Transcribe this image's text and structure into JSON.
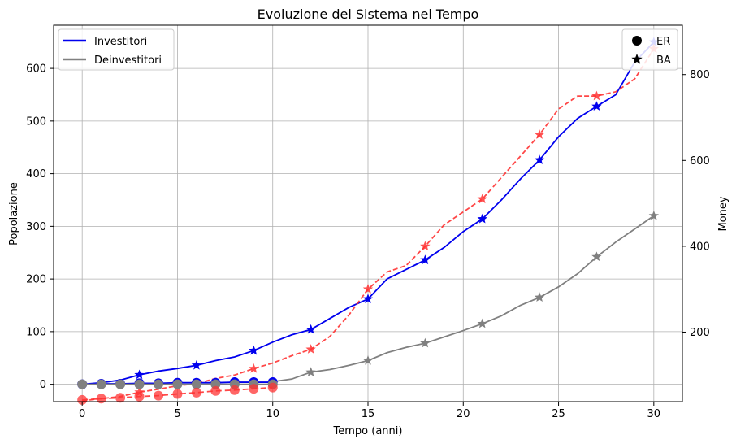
{
  "chart_data": {
    "type": "line",
    "title": "Evoluzione del Sistema nel Tempo",
    "xlabel": "Tempo (anni)",
    "ylabel": "Popolazione",
    "y2label": "Money",
    "xlim": [
      -1.5,
      31.5
    ],
    "ylim": [
      -33,
      682
    ],
    "y2lim": [
      38,
      915
    ],
    "x_ticks": [
      0,
      5,
      10,
      15,
      20,
      25,
      30
    ],
    "y_ticks": [
      0,
      100,
      200,
      300,
      400,
      500,
      600
    ],
    "y2_ticks": [
      200,
      400,
      600,
      800
    ],
    "grid": true,
    "legend_left": {
      "placement": "top-left",
      "entries": [
        {
          "label": "Investitori",
          "color": "#0000ee"
        },
        {
          "label": "Deinvestitori",
          "color": "#808080"
        }
      ]
    },
    "legend_right": {
      "placement": "top-right",
      "entries": [
        {
          "label": "ER",
          "marker": "circle"
        },
        {
          "label": "BA",
          "marker": "star"
        }
      ]
    },
    "series": [
      {
        "model": "BA",
        "kind": "investitori",
        "axis": "left",
        "color": "#0000ee",
        "style": "solid",
        "x": [
          0,
          1,
          2,
          3,
          4,
          5,
          6,
          7,
          8,
          9,
          10,
          11,
          12,
          13,
          14,
          15,
          16,
          17,
          18,
          19,
          20,
          21,
          22,
          23,
          24,
          25,
          26,
          27,
          28,
          29,
          30
        ],
        "y": [
          0,
          3,
          8,
          18,
          25,
          30,
          36,
          45,
          52,
          64,
          80,
          94,
          104,
          125,
          146,
          162,
          200,
          218,
          236,
          260,
          290,
          314,
          350,
          390,
          426,
          470,
          505,
          528,
          550,
          612,
          650
        ],
        "marker_x": [
          0,
          3,
          6,
          9,
          12,
          15,
          18,
          21,
          24,
          27,
          30
        ],
        "marker_y": [
          0,
          18,
          36,
          64,
          104,
          162,
          236,
          314,
          426,
          528,
          650
        ]
      },
      {
        "model": "BA",
        "kind": "deinvestitori",
        "axis": "left",
        "color": "#808080",
        "style": "solid",
        "x": [
          10,
          11,
          12,
          13,
          14,
          15,
          16,
          17,
          18,
          19,
          20,
          21,
          22,
          23,
          24,
          25,
          26,
          27,
          28,
          29,
          30
        ],
        "y": [
          5,
          10,
          23,
          28,
          36,
          45,
          60,
          70,
          78,
          90,
          102,
          115,
          130,
          150,
          165,
          185,
          210,
          242,
          270,
          295,
          320
        ],
        "marker_x": [
          12,
          15,
          18,
          21,
          24,
          27,
          30
        ],
        "marker_y": [
          23,
          45,
          78,
          115,
          165,
          242,
          320
        ]
      },
      {
        "model": "BA",
        "kind": "money",
        "axis": "right",
        "color": "#ff3333",
        "style": "dashed",
        "x": [
          0,
          1,
          2,
          3,
          4,
          5,
          6,
          7,
          8,
          9,
          10,
          11,
          12,
          13,
          14,
          15,
          16,
          17,
          18,
          19,
          20,
          21,
          22,
          23,
          24,
          25,
          26,
          27,
          28,
          29,
          30
        ],
        "y": [
          40,
          45,
          50,
          60,
          67,
          75,
          80,
          92,
          100,
          115,
          128,
          145,
          160,
          190,
          240,
          300,
          340,
          355,
          400,
          450,
          480,
          510,
          560,
          610,
          660,
          720,
          750,
          750,
          760,
          790,
          860
        ],
        "marker_x": [
          3,
          6,
          9,
          12,
          15,
          18,
          21,
          24,
          27,
          30
        ],
        "marker_y": [
          60,
          80,
          115,
          160,
          300,
          400,
          510,
          660,
          750,
          860
        ]
      },
      {
        "model": "ER",
        "kind": "investitori",
        "axis": "left",
        "color": "#0000ee",
        "style": "solid",
        "x": [
          0,
          1,
          2,
          3,
          4,
          5,
          6,
          7,
          8,
          9,
          10
        ],
        "y": [
          0,
          1,
          1,
          2,
          2,
          3,
          3,
          3,
          4,
          4,
          4
        ],
        "marker_x": [
          0,
          1,
          2,
          3,
          4,
          5,
          6,
          7,
          8,
          9,
          10
        ],
        "marker_y": [
          0,
          1,
          1,
          2,
          2,
          3,
          3,
          3,
          4,
          4,
          4
        ]
      },
      {
        "model": "ER",
        "kind": "deinvestitori",
        "axis": "left",
        "color": "#808080",
        "style": "solid",
        "x": [
          0,
          1,
          2,
          3,
          4,
          5,
          6,
          7,
          8,
          9,
          10
        ],
        "y": [
          0,
          0,
          0,
          0,
          0,
          0,
          0,
          0,
          0,
          0,
          0
        ],
        "marker_x": [
          0,
          1,
          2,
          3,
          4,
          5,
          6,
          7,
          8,
          9,
          10
        ],
        "marker_y": [
          0,
          0,
          0,
          0,
          0,
          0,
          0,
          0,
          0,
          0,
          0
        ]
      },
      {
        "model": "ER",
        "kind": "money",
        "axis": "right",
        "color": "#ff3333",
        "style": "dashed",
        "x": [
          0,
          1,
          2,
          3,
          4,
          5,
          6,
          7,
          8,
          9,
          10
        ],
        "y": [
          42,
          45,
          47,
          50,
          52,
          56,
          59,
          63,
          65,
          68,
          71
        ],
        "marker_x": [
          0,
          1,
          2,
          3,
          4,
          5,
          6,
          7,
          8,
          9,
          10
        ],
        "marker_y": [
          42,
          45,
          47,
          50,
          52,
          56,
          59,
          63,
          65,
          68,
          71
        ]
      }
    ]
  }
}
